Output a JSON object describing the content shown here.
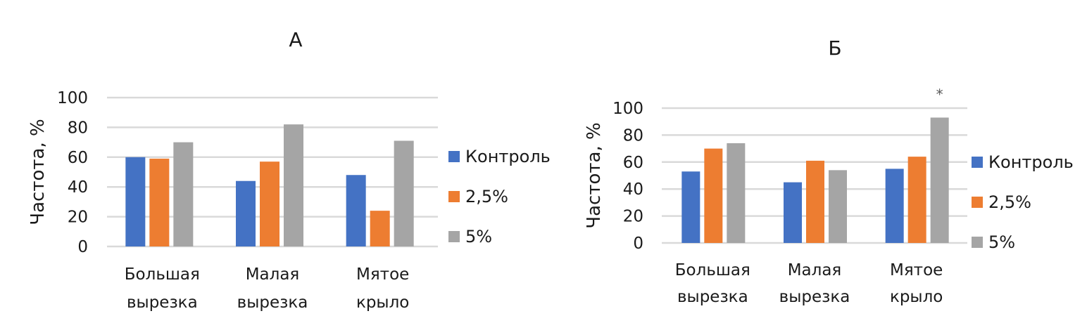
{
  "chart_data": [
    {
      "type": "bar",
      "title": "А",
      "ylabel": "Частота, %",
      "xlabel": "",
      "ylim": [
        0,
        100
      ],
      "yticks": [
        0,
        20,
        40,
        60,
        80,
        100
      ],
      "grid": true,
      "legend": "right",
      "categories": [
        [
          "Большая",
          "вырезка"
        ],
        [
          "Малая",
          "вырезка"
        ],
        [
          "Мятое",
          "крыло"
        ]
      ],
      "series": [
        {
          "name": "Контроль",
          "color": "#4472c4",
          "values": [
            60,
            44,
            48
          ]
        },
        {
          "name": "2,5%",
          "color": "#ed7d31",
          "values": [
            59,
            57,
            24
          ]
        },
        {
          "name": "5%",
          "color": "#a5a5a5",
          "values": [
            70,
            82,
            71
          ]
        }
      ],
      "annotations": []
    },
    {
      "type": "bar",
      "title": "Б",
      "ylabel": "Частота, %",
      "xlabel": "",
      "ylim": [
        0,
        100
      ],
      "yticks": [
        0,
        20,
        40,
        60,
        80,
        100
      ],
      "grid": true,
      "legend": "right",
      "categories": [
        [
          "Большая",
          "вырезка"
        ],
        [
          "Малая",
          "вырезка"
        ],
        [
          "Мятое",
          "крыло"
        ]
      ],
      "series": [
        {
          "name": "Контроль",
          "color": "#4472c4",
          "values": [
            53,
            45,
            55
          ]
        },
        {
          "name": "2,5%",
          "color": "#ed7d31",
          "values": [
            70,
            61,
            64
          ]
        },
        {
          "name": "5%",
          "color": "#a5a5a5",
          "values": [
            74,
            54,
            93
          ]
        }
      ],
      "annotations": [
        {
          "text": "*",
          "category_index": 2,
          "series_index": 2
        }
      ]
    }
  ]
}
